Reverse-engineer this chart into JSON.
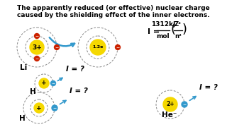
{
  "bg_color": "#ffffff",
  "text_color": "#000000",
  "title_line1": "The apparently reduced (or effective) nuclear charge",
  "title_line2": "caused by the shielding effect of the inner electrons.",
  "title_fontsize": 6.5,
  "li_nucleus_color": "#f5d800",
  "li_nucleus_text": "3+",
  "li_label": "Li",
  "eff_nucleus_color": "#f5d800",
  "eff_nucleus_text": "1.2e",
  "h1_nucleus_color": "#f5d800",
  "h1_nucleus_text": "+",
  "h1_label": "H",
  "h2_nucleus_color": "#f5d800",
  "h2_nucleus_text": "+",
  "h2_label": "H",
  "he_nucleus_color": "#f5d800",
  "he_nucleus_text": "2+",
  "he_label": "He⁻",
  "electron_red": "#cc2200",
  "electron_blue": "#3399cc",
  "arrow_color": "#3399cc",
  "question_text": "I = ?",
  "question_fontsize": 7.5
}
